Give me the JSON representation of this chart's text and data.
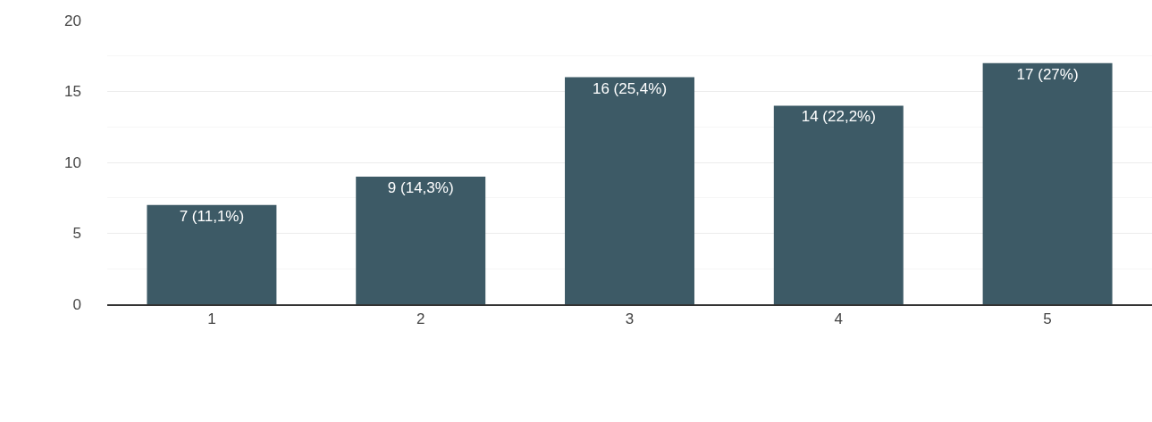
{
  "chart_data": {
    "type": "bar",
    "categories": [
      "1",
      "2",
      "3",
      "4",
      "5"
    ],
    "values": [
      7,
      9,
      16,
      14,
      17
    ],
    "value_labels": [
      "7 (11,1%)",
      "9 (14,3%)",
      "16 (25,4%)",
      "14 (22,2%)",
      "17 (27%)"
    ],
    "color": "#3d5a66",
    "ylim": [
      0,
      20
    ],
    "yticks": [
      0,
      5,
      10,
      15,
      20
    ],
    "grid": "y"
  }
}
